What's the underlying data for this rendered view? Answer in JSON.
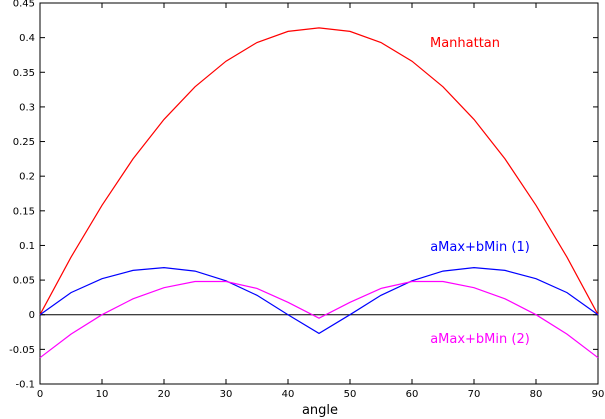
{
  "chart_data": {
    "type": "line",
    "title": "",
    "xlabel": "angle",
    "ylabel": "",
    "xlim": [
      0,
      90
    ],
    "ylim": [
      -0.1,
      0.45
    ],
    "xticks": [
      0,
      10,
      20,
      30,
      40,
      50,
      60,
      70,
      80,
      90
    ],
    "yticks": [
      -0.1,
      -0.05,
      0,
      0.05,
      0.1,
      0.15,
      0.2,
      0.25,
      0.3,
      0.35,
      0.4,
      0.45
    ],
    "xtick_labels": [
      "0",
      "10",
      "20",
      "30",
      "40",
      "50",
      "60",
      "70",
      "80",
      "90"
    ],
    "ytick_labels": [
      "-0.1",
      "-0.05",
      "0",
      "0.05",
      "0.1",
      "0.15",
      "0.2",
      "0.25",
      "0.3",
      "0.35",
      "0.4",
      "0.45"
    ],
    "grid": false,
    "zero_line": true,
    "series": [
      {
        "name": "Manhattan",
        "color": "#ff0000",
        "label_position": "right of peak",
        "x": [
          0,
          5,
          10,
          15,
          20,
          25,
          30,
          35,
          40,
          45,
          50,
          55,
          60,
          65,
          70,
          75,
          80,
          85,
          90
        ],
        "y": [
          0,
          0.083,
          0.158,
          0.225,
          0.282,
          0.329,
          0.366,
          0.393,
          0.409,
          0.414,
          0.409,
          0.393,
          0.366,
          0.329,
          0.282,
          0.225,
          0.158,
          0.083,
          0
        ]
      },
      {
        "name": "aMax+bMin (1)",
        "color": "#0000ff",
        "label_position": "above right hump",
        "x": [
          0,
          5,
          10,
          15,
          20,
          25,
          30,
          35,
          40,
          45,
          50,
          55,
          60,
          65,
          70,
          75,
          80,
          85,
          90
        ],
        "y": [
          0,
          0.032,
          0.052,
          0.064,
          0.068,
          0.063,
          0.049,
          0.028,
          0.0,
          -0.027,
          0.0,
          0.028,
          0.049,
          0.063,
          0.068,
          0.064,
          0.052,
          0.032,
          0
        ]
      },
      {
        "name": "aMax+bMin (2)",
        "color": "#ff00ff",
        "label_position": "below right end",
        "x": [
          0,
          5,
          10,
          15,
          20,
          25,
          30,
          35,
          40,
          45,
          50,
          55,
          60,
          65,
          70,
          75,
          80,
          85,
          90
        ],
        "y": [
          -0.062,
          -0.028,
          0.0,
          0.023,
          0.039,
          0.048,
          0.048,
          0.038,
          0.018,
          -0.005,
          0.018,
          0.038,
          0.048,
          0.048,
          0.039,
          0.023,
          0.0,
          -0.028,
          -0.062
        ]
      }
    ]
  }
}
